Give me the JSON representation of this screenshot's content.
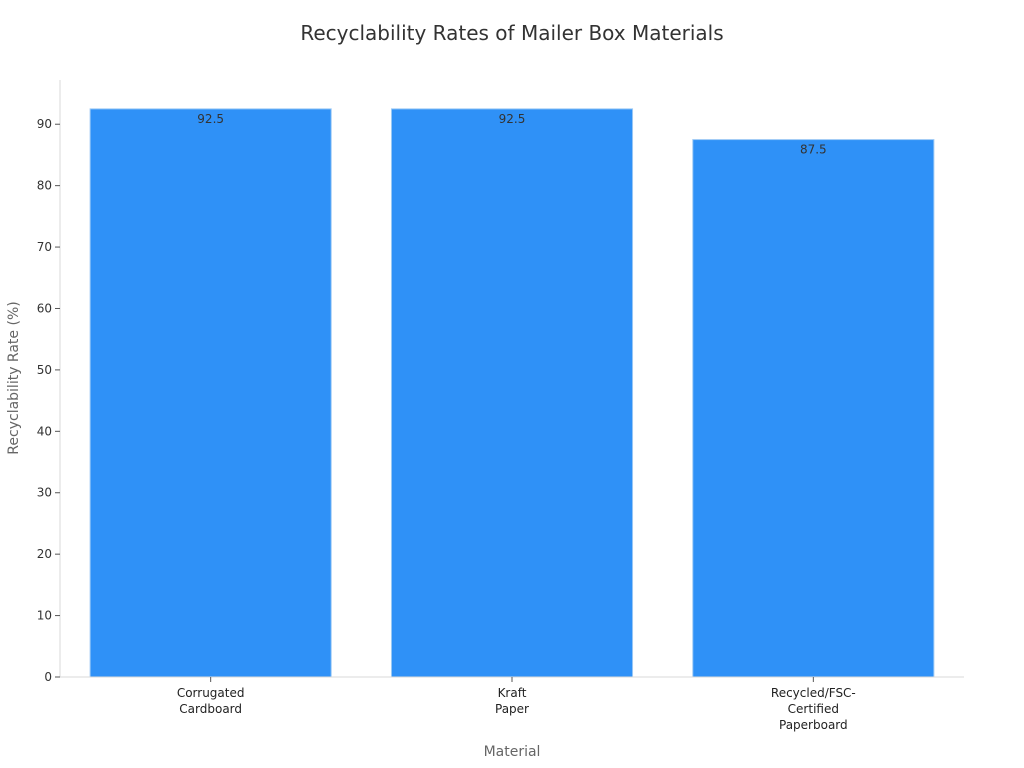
{
  "chart_data": {
    "type": "bar",
    "title": "Recyclability Rates of Mailer Box Materials",
    "xlabel": "Material",
    "ylabel": "Recyclability Rate (%)",
    "categories": [
      [
        "Corrugated",
        "Cardboard"
      ],
      [
        "Kraft",
        "Paper"
      ],
      [
        "Recycled/FSC-",
        "Certified",
        "Paperboard"
      ]
    ],
    "values": [
      92.5,
      92.5,
      87.5
    ],
    "data_labels": [
      "92.5",
      "92.5",
      "87.5"
    ],
    "yticks": [
      0,
      10,
      20,
      30,
      40,
      50,
      60,
      70,
      80,
      90
    ],
    "ylim": [
      0,
      97.2
    ],
    "bar_color": "#2f91f7",
    "grid": false
  }
}
